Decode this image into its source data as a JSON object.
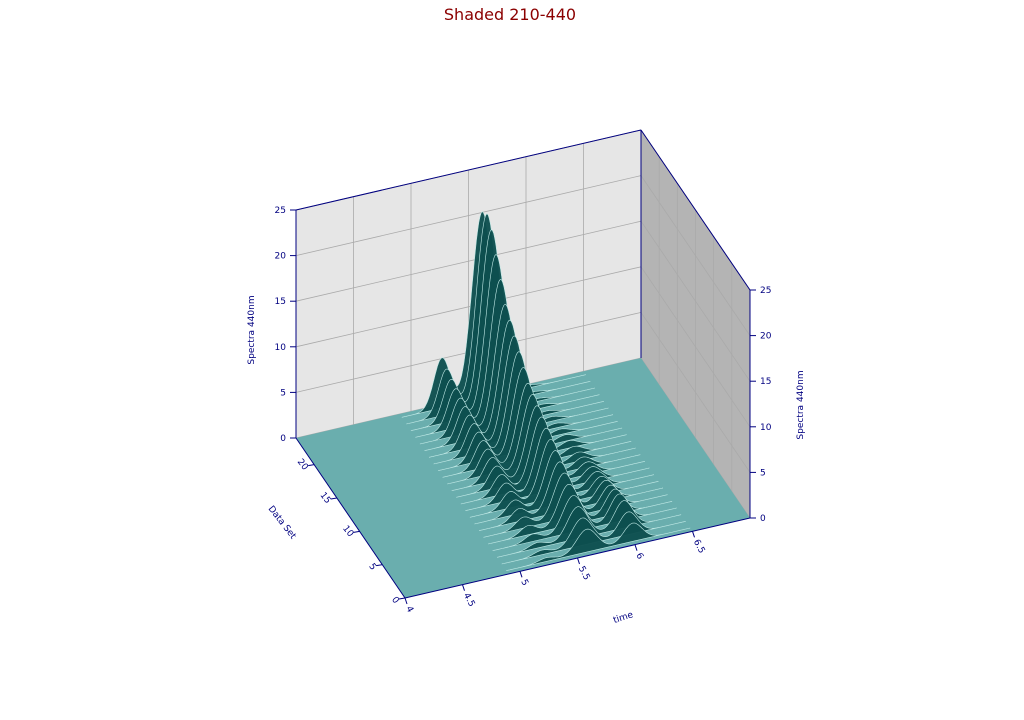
{
  "chart_data": {
    "type": "surface3d",
    "title": "Shaded 210-440",
    "xlabel": "time",
    "ylabel": "Data Set",
    "zlabel": "Spectra 440nm",
    "xlim": [
      4,
      7
    ],
    "ylim": [
      0,
      24
    ],
    "zlim": [
      0,
      25
    ],
    "x_ticks": [
      "4",
      "4.5",
      "5",
      "5.5",
      "6",
      "6.5"
    ],
    "y_ticks": [
      "0",
      "5",
      "10",
      "15",
      "20"
    ],
    "z_ticks": [
      "0",
      "5",
      "10",
      "15",
      "20",
      "25"
    ],
    "grid": true,
    "surface_color": "#6aaeae",
    "peak_color": "#0e4f4f",
    "wall_left_color": "#e6e6e6",
    "wall_right_color": "#b4b4b4",
    "peaks": [
      {
        "center": 5.25,
        "width": 0.07,
        "heights": [
          0.4,
          0.5,
          0.6,
          0.8,
          1.0,
          1.2,
          1.4,
          1.6,
          1.8,
          2.0,
          2.2,
          2.4,
          2.6,
          2.8,
          3.0,
          3.2,
          3.4,
          3.6,
          3.8,
          4.0,
          4.3,
          4.6,
          5.0,
          5.5
        ]
      },
      {
        "center": 5.6,
        "width": 0.09,
        "heights": [
          2.5,
          3.0,
          3.5,
          4.0,
          4.5,
          5.0,
          5.5,
          6.0,
          6.5,
          7.0,
          7.5,
          8.0,
          8.5,
          9.0,
          10.0,
          11.0,
          12.0,
          13.0,
          14.0,
          16.0,
          18.0,
          20.0,
          21.0,
          20.5
        ]
      },
      {
        "center": 6.0,
        "width": 0.08,
        "heights": [
          2.0,
          2.5,
          3.0,
          3.0,
          2.8,
          2.5,
          2.3,
          2.0,
          1.8,
          1.6,
          1.4,
          1.2,
          1.0,
          0.9,
          0.8,
          0.7,
          0.6,
          0.5,
          0.5,
          0.4,
          0.4,
          0.3,
          0.3,
          0.3
        ]
      }
    ]
  }
}
